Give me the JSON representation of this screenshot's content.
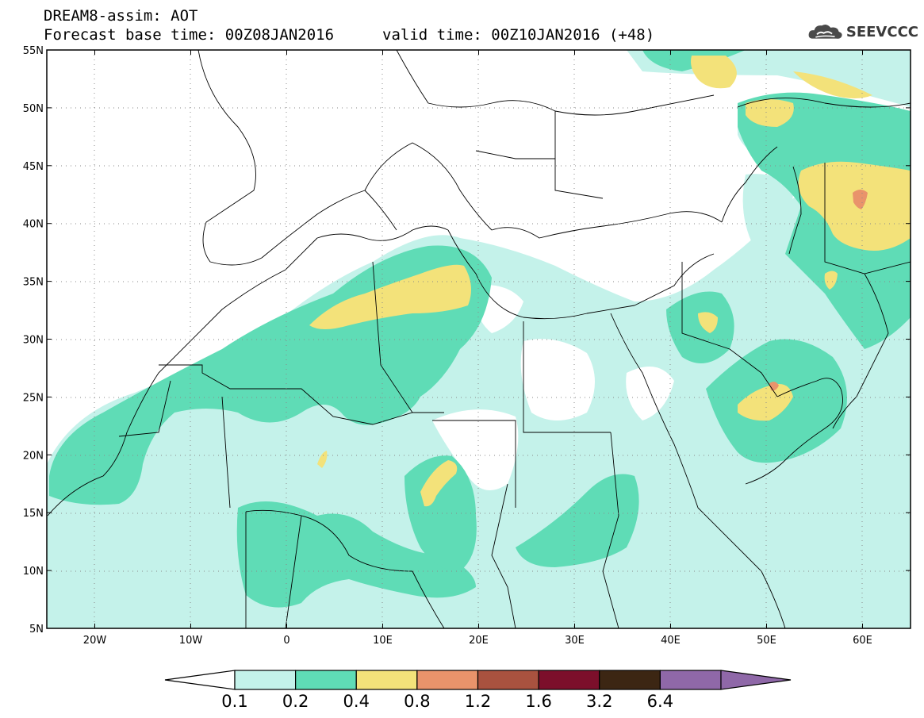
{
  "header": {
    "title": "DREAM8-assim: AOT",
    "base_time": "Forecast base time: 00Z08JAN2016",
    "valid_time": "valid time: 00Z10JAN2016 (+48)"
  },
  "logo": {
    "text": "SEEVCCC",
    "icon": "cloud-icon"
  },
  "map": {
    "region": "North Africa, Europe and Middle East",
    "lon_range": [
      -25,
      65
    ],
    "lat_range": [
      5,
      55
    ],
    "lat_labels": [
      "55N",
      "50N",
      "45N",
      "40N",
      "35N",
      "30N",
      "25N",
      "20N",
      "15N",
      "10N",
      "5N"
    ],
    "lon_labels": [
      "20W",
      "10W",
      "0",
      "10E",
      "20E",
      "30E",
      "40E",
      "50E",
      "60E"
    ],
    "gridlines": true
  },
  "colorbar": {
    "levels": [
      "0.1",
      "0.2",
      "0.4",
      "0.8",
      "1.2",
      "1.6",
      "3.2",
      "6.4"
    ],
    "colors": [
      "#c4f2ea",
      "#5fdcb6",
      "#f3e27a",
      "#e9936b",
      "#a9523f",
      "#7c0f2b",
      "#3c2613",
      "#8f68a8"
    ],
    "under_color": "#ffffff"
  },
  "colors": {
    "aot_0_1": "#c4f2ea",
    "aot_0_2": "#5fdcb6",
    "aot_0_4": "#f3e27a",
    "aot_0_8": "#e9936b"
  }
}
